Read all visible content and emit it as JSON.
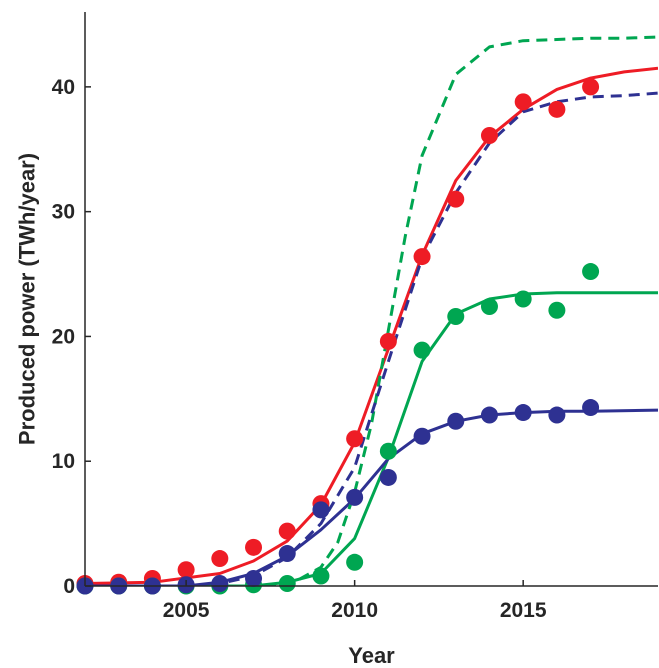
{
  "chart_data": {
    "type": "line",
    "title": "",
    "xlabel": "Year",
    "ylabel": "Produced power (TWh/year)",
    "xlim": [
      2002,
      2019
    ],
    "ylim": [
      0,
      46
    ],
    "xticks": [
      2005,
      2010,
      2015
    ],
    "yticks": [
      0,
      10,
      20,
      30,
      40
    ],
    "grid": false,
    "legend": "none",
    "series": [
      {
        "style": "scatter",
        "color": "#ee1c25",
        "x": [
          2002,
          2003,
          2004,
          2005,
          2006,
          2007,
          2008,
          2009,
          2010,
          2011,
          2012,
          2013,
          2014,
          2015,
          2016,
          2017
        ],
        "y": [
          0.2,
          0.3,
          0.6,
          1.3,
          2.2,
          3.1,
          4.4,
          6.6,
          11.8,
          19.6,
          26.4,
          31.0,
          36.1,
          38.8,
          38.2,
          40.0
        ]
      },
      {
        "style": "scatter",
        "color": "#00a651",
        "x": [
          2002,
          2003,
          2004,
          2005,
          2006,
          2007,
          2008,
          2009,
          2010,
          2011,
          2012,
          2013,
          2014,
          2015,
          2016,
          2017
        ],
        "y": [
          0,
          0,
          0,
          0,
          0,
          0.1,
          0.2,
          0.8,
          1.9,
          10.8,
          18.9,
          21.6,
          22.4,
          23.0,
          22.1,
          25.2
        ]
      },
      {
        "style": "scatter",
        "color": "#2e3192",
        "x": [
          2002,
          2003,
          2004,
          2005,
          2006,
          2007,
          2008,
          2009,
          2010,
          2011,
          2012,
          2013,
          2014,
          2015,
          2016,
          2017
        ],
        "y": [
          0,
          0,
          0,
          0.1,
          0.2,
          0.6,
          2.6,
          6.1,
          7.1,
          8.7,
          12.0,
          13.2,
          13.7,
          13.9,
          13.7,
          14.3
        ]
      },
      {
        "style": "solid",
        "color": "#ee1c25",
        "x": [
          2002,
          2004,
          2006,
          2007,
          2008,
          2009,
          2010,
          2011,
          2012,
          2013,
          2014,
          2015,
          2016,
          2017,
          2018,
          2019
        ],
        "y": [
          0.2,
          0.3,
          1.0,
          2.0,
          3.6,
          6.5,
          11.5,
          19.0,
          26.5,
          32.5,
          36.0,
          38.2,
          39.8,
          40.7,
          41.2,
          41.5
        ]
      },
      {
        "style": "solid",
        "color": "#00a651",
        "x": [
          2002,
          2007,
          2008,
          2009,
          2010,
          2011,
          2012,
          2013,
          2014,
          2015,
          2016,
          2017,
          2019
        ],
        "y": [
          0,
          0,
          0.3,
          1.0,
          3.8,
          10.3,
          18.0,
          21.8,
          23.0,
          23.4,
          23.5,
          23.5,
          23.5
        ]
      },
      {
        "style": "solid",
        "color": "#2e3192",
        "x": [
          2002,
          2005,
          2006,
          2007,
          2008,
          2009,
          2010,
          2011,
          2012,
          2013,
          2014,
          2015,
          2016,
          2017,
          2019
        ],
        "y": [
          0,
          0,
          0.3,
          1.0,
          2.4,
          4.5,
          7.0,
          10.2,
          12.2,
          13.2,
          13.7,
          13.9,
          14.0,
          14.0,
          14.1
        ]
      },
      {
        "style": "dashed",
        "color": "#00a651",
        "x": [
          2002,
          2008,
          2009,
          2009.5,
          2010,
          2010.5,
          2011,
          2011.5,
          2012,
          2013,
          2014,
          2015,
          2016,
          2017,
          2018,
          2019
        ],
        "y": [
          0,
          0,
          1.5,
          3.5,
          7.5,
          13.0,
          20.5,
          28.0,
          34.5,
          41.0,
          43.2,
          43.7,
          43.8,
          43.9,
          43.9,
          44.0
        ]
      },
      {
        "style": "dashed",
        "color": "#2e3192",
        "x": [
          2002,
          2005,
          2006,
          2007,
          2008,
          2009,
          2010,
          2011,
          2012,
          2013,
          2014,
          2015,
          2016,
          2017,
          2018,
          2019
        ],
        "y": [
          0,
          0,
          0.2,
          0.8,
          2.3,
          5.0,
          9.5,
          18.0,
          26.3,
          31.5,
          35.5,
          38.0,
          38.8,
          39.2,
          39.3,
          39.5
        ]
      }
    ]
  }
}
